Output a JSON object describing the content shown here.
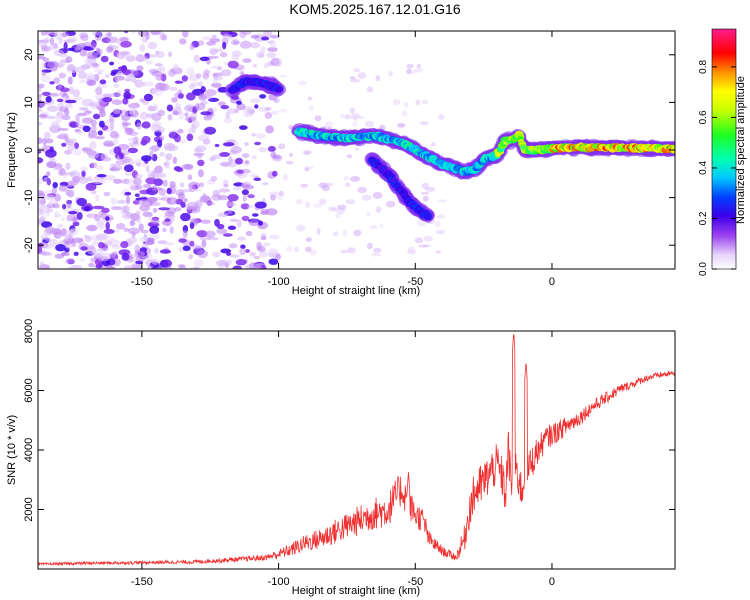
{
  "title": "KOM5.2025.167.12.01.G16",
  "colors": {
    "snr_line": "#f03030",
    "scatter_main": "#6a00d8",
    "scatter_light": "#d9c6f4"
  },
  "chart_data": [
    {
      "type": "heatmap",
      "title": "KOM5.2025.167.12.01.G16",
      "xlabel": "Height of straight line (km)",
      "ylabel": "Frequency (Hz)",
      "xlim": [
        -188,
        45
      ],
      "ylim": [
        -25,
        25
      ],
      "xticks": [
        -150,
        -100,
        -50,
        0
      ],
      "yticks": [
        -20,
        -10,
        0,
        10,
        20
      ],
      "grid": false,
      "colorbar": {
        "label": "Normalized spectral amplitude",
        "range": [
          0,
          0.95
        ],
        "ticks": [
          0.0,
          0.2,
          0.4,
          0.6,
          0.8
        ],
        "tick_labels": [
          "0.0",
          "0.2",
          "0.4",
          "0.6",
          "0.8"
        ],
        "colormap": "rainbow (white-violet-blue-cyan-green-yellow-orange-red-magenta)"
      },
      "features": [
        {
          "description": "noise",
          "x_range": [
            -188,
            -100
          ],
          "y_range": [
            -25,
            25
          ],
          "amplitude": 0.1
        },
        {
          "description": "band",
          "x": [
            -117,
            -112,
            -106,
            -100
          ],
          "y": [
            12.5,
            14.5,
            14,
            13
          ],
          "amplitude": 0.2
        },
        {
          "description": "band",
          "x": [
            -93,
            -85,
            -75,
            -65,
            -55,
            -50,
            -45,
            -40,
            -35,
            -32,
            -28,
            -25,
            -20,
            -17,
            -15,
            -12,
            -10,
            -5,
            0,
            5,
            10,
            20,
            30,
            40,
            45
          ],
          "y": [
            4,
            3,
            2.5,
            3,
            1.5,
            0,
            -1.5,
            -3,
            -4,
            -4.5,
            -4,
            -2,
            -1,
            2,
            2,
            3,
            0,
            0,
            0.3,
            0.5,
            0.6,
            0.5,
            0.4,
            0.3,
            0.2
          ],
          "amplitude": 0.7
        },
        {
          "description": "band",
          "x": [
            -66,
            -60,
            -56,
            -52,
            -48,
            -45
          ],
          "y": [
            -2,
            -5,
            -8,
            -11,
            -13,
            -14
          ],
          "amplitude": 0.2
        }
      ]
    },
    {
      "type": "line",
      "xlabel": "Height of straight line (km)",
      "ylabel": "SNR (10 * v/v)",
      "xlim": [
        -188,
        45
      ],
      "ylim": [
        0,
        8000
      ],
      "xticks": [
        -150,
        -100,
        -50,
        0
      ],
      "yticks": [
        2000,
        4000,
        6000,
        8000
      ],
      "grid": false,
      "series": [
        {
          "color": "#f03030",
          "x": [
            -188,
            -170,
            -150,
            -130,
            -115,
            -105,
            -100,
            -95,
            -90,
            -85,
            -80,
            -75,
            -70,
            -65,
            -60,
            -57,
            -55,
            -52,
            -50,
            -47,
            -45,
            -40,
            -35,
            -32,
            -30,
            -28,
            -25,
            -22,
            -20,
            -18,
            -17,
            -16,
            -15,
            -13,
            -11,
            -10,
            -8,
            -6,
            -4,
            -2,
            0,
            5,
            10,
            15,
            20,
            25,
            30,
            35,
            40,
            45
          ],
          "y": [
            150,
            180,
            200,
            220,
            300,
            350,
            450,
            600,
            800,
            900,
            1100,
            1300,
            1500,
            1700,
            1800,
            2300,
            2500,
            2000,
            1700,
            1500,
            900,
            550,
            350,
            900,
            1900,
            2400,
            2700,
            3100,
            3300,
            2800,
            2200,
            3900,
            2600,
            3100,
            2400,
            2900,
            3300,
            3700,
            4000,
            4300,
            4400,
            4700,
            5000,
            5400,
            5700,
            6000,
            6200,
            6400,
            6500,
            6550
          ],
          "noise": [
            60,
            80,
            80,
            100,
            120,
            150,
            250,
            350,
            450,
            550,
            650,
            700,
            800,
            850,
            900,
            900,
            900,
            800,
            700,
            650,
            450,
            250,
            200,
            700,
            1000,
            1100,
            1100,
            1100,
            1100,
            1100,
            1000,
            1100,
            1100,
            1000,
            1000,
            1000,
            900,
            800,
            700,
            600,
            600,
            500,
            400,
            350,
            300,
            250,
            200,
            180,
            150,
            150
          ],
          "peaks": [
            {
              "x": -52.5,
              "y": 3300
            },
            {
              "x": -14,
              "y": 8000
            },
            {
              "x": -9.5,
              "y": 7000
            }
          ]
        }
      ]
    }
  ]
}
